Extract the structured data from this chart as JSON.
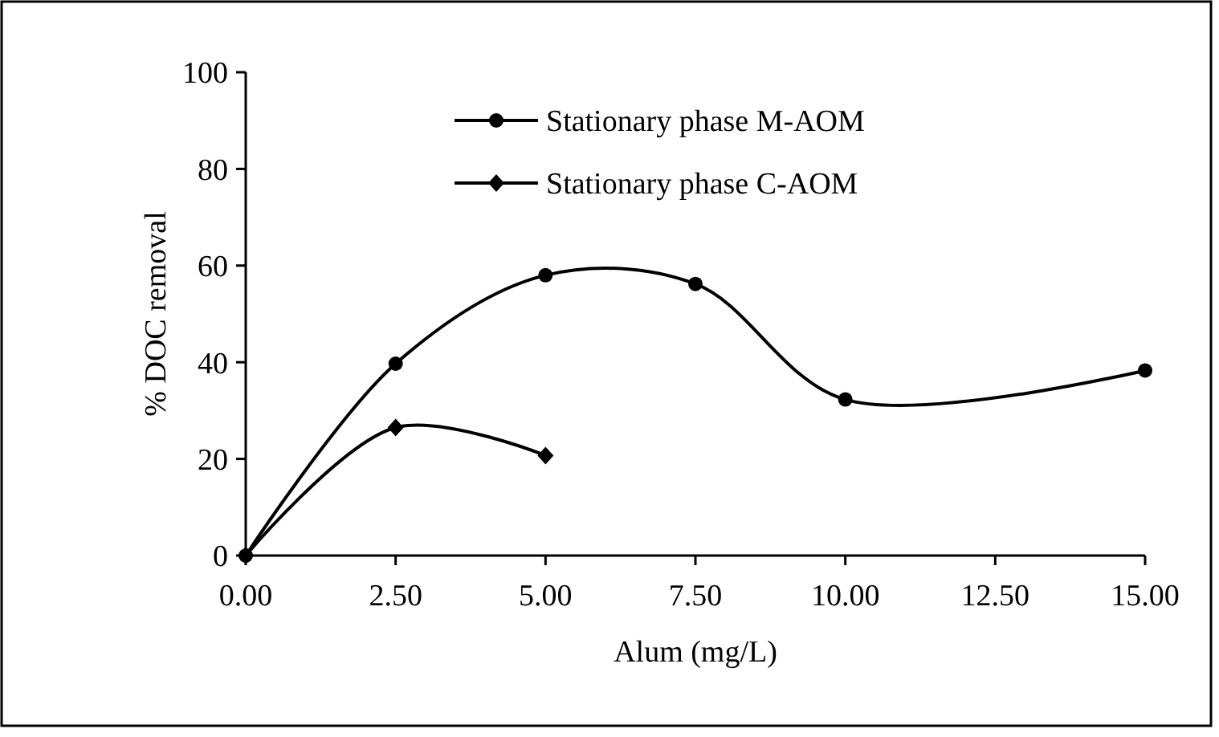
{
  "chart_data": {
    "type": "line",
    "xlabel": "Alum (mg/L)",
    "ylabel": "% DOC removal",
    "xlim": [
      0,
      15
    ],
    "xticks": [
      {
        "value": 0,
        "label": "0.00"
      },
      {
        "value": 2.5,
        "label": "2.50"
      },
      {
        "value": 5,
        "label": "5.00"
      },
      {
        "value": 7.5,
        "label": "7.50"
      },
      {
        "value": 10,
        "label": "10.00"
      },
      {
        "value": 12.5,
        "label": "12.50"
      },
      {
        "value": 15,
        "label": "15.00"
      }
    ],
    "ylim": [
      0,
      100
    ],
    "yticks": [
      0,
      20,
      40,
      60,
      80,
      100
    ],
    "grid": false,
    "legend": "top",
    "line_style": "solid",
    "series": [
      {
        "name": "Stationary phase M-AOM",
        "color": "#000000",
        "marker": "circle",
        "x": [
          0,
          2.5,
          5,
          7.5,
          10,
          15
        ],
        "values": [
          0,
          39.7,
          58,
          56.2,
          32.3,
          38.3
        ]
      },
      {
        "name": "Stationary phase C-AOM",
        "color": "#000000",
        "marker": "diamond",
        "x": [
          0,
          2.5,
          5
        ],
        "values": [
          0,
          26.5,
          20.7
        ]
      }
    ]
  }
}
